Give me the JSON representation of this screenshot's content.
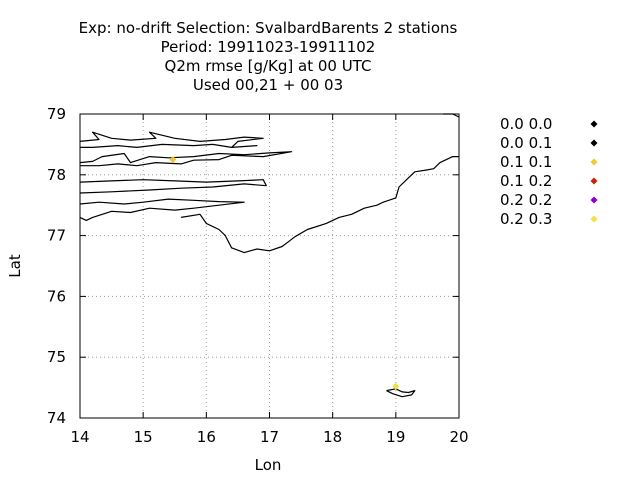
{
  "chart_data": {
    "type": "scatter",
    "title_lines": [
      "Exp: no-drift   Selection: SvalbardBarents       2 stations",
      "Period: 19911023-19911102",
      "Q2m rmse [g/Kg] at  00 UTC",
      "Used  00,21  + 00 03"
    ],
    "xlabel": "Lon",
    "ylabel": "Lat",
    "xlim": [
      14,
      20
    ],
    "ylim": [
      74,
      79
    ],
    "xticks": [
      "14",
      "15",
      "16",
      "17",
      "18",
      "19",
      "20"
    ],
    "yticks": [
      "74",
      "75",
      "76",
      "77",
      "78",
      "79"
    ],
    "grid": true,
    "legend_position": "right",
    "legend": [
      {
        "label": "0.0 0.0",
        "color": "#000000"
      },
      {
        "label": "0.0 0.1",
        "color": "#000000"
      },
      {
        "label": "0.1 0.1",
        "color": "#f0c830"
      },
      {
        "label": "0.1 0.2",
        "color": "#cc2200"
      },
      {
        "label": "0.2 0.2",
        "color": "#8a00cc"
      },
      {
        "label": "0.2 0.3",
        "color": "#f0e040"
      }
    ],
    "points": [
      {
        "lon": 15.47,
        "lat": 78.25,
        "color": "#f0c830"
      },
      {
        "lon": 19.0,
        "lat": 74.52,
        "color": "#f0e040"
      }
    ],
    "coastlines": [
      [
        [
          14.0,
          78.2
        ],
        [
          14.2,
          78.22
        ],
        [
          14.35,
          78.3
        ],
        [
          14.7,
          78.35
        ],
        [
          14.8,
          78.2
        ],
        [
          15.1,
          78.3
        ],
        [
          15.4,
          78.28
        ],
        [
          15.8,
          78.3
        ],
        [
          16.2,
          78.35
        ],
        [
          16.6,
          78.33
        ],
        [
          17.0,
          78.36
        ],
        [
          17.35,
          78.38
        ],
        [
          16.9,
          78.3
        ],
        [
          16.4,
          78.32
        ],
        [
          16.2,
          78.25
        ],
        [
          15.8,
          78.24
        ],
        [
          15.6,
          78.18
        ],
        [
          15.2,
          78.2
        ],
        [
          14.9,
          78.15
        ],
        [
          14.6,
          78.18
        ],
        [
          14.3,
          78.15
        ],
        [
          14.0,
          78.15
        ]
      ],
      [
        [
          14.0,
          78.55
        ],
        [
          14.3,
          78.58
        ],
        [
          14.2,
          78.7
        ],
        [
          14.5,
          78.6
        ],
        [
          14.8,
          78.57
        ],
        [
          15.2,
          78.6
        ],
        [
          15.1,
          78.7
        ],
        [
          15.5,
          78.6
        ],
        [
          15.9,
          78.55
        ],
        [
          16.3,
          78.58
        ],
        [
          16.6,
          78.62
        ],
        [
          16.9,
          78.6
        ],
        [
          16.5,
          78.55
        ],
        [
          16.4,
          78.45
        ],
        [
          16.8,
          78.48
        ],
        [
          16.4,
          78.45
        ],
        [
          16.1,
          78.5
        ],
        [
          15.8,
          78.48
        ],
        [
          15.3,
          78.5
        ],
        [
          14.9,
          78.45
        ],
        [
          14.6,
          78.48
        ],
        [
          14.2,
          78.45
        ],
        [
          14.0,
          78.45
        ]
      ],
      [
        [
          14.0,
          77.88
        ],
        [
          14.5,
          77.9
        ],
        [
          15.0,
          77.92
        ],
        [
          15.5,
          77.9
        ],
        [
          16.0,
          77.88
        ],
        [
          16.5,
          77.9
        ],
        [
          16.9,
          77.92
        ],
        [
          16.95,
          77.82
        ],
        [
          16.6,
          77.85
        ],
        [
          16.1,
          77.8
        ],
        [
          15.6,
          77.78
        ],
        [
          15.1,
          77.75
        ],
        [
          14.5,
          77.72
        ],
        [
          14.0,
          77.7
        ]
      ],
      [
        [
          14.0,
          77.52
        ],
        [
          14.3,
          77.55
        ],
        [
          14.7,
          77.52
        ],
        [
          15.0,
          77.55
        ],
        [
          15.4,
          77.6
        ],
        [
          15.8,
          77.58
        ],
        [
          16.2,
          77.56
        ],
        [
          16.6,
          77.55
        ],
        [
          16.2,
          77.5
        ],
        [
          15.8,
          77.45
        ],
        [
          15.5,
          77.42
        ],
        [
          15.1,
          77.45
        ],
        [
          14.8,
          77.38
        ],
        [
          14.5,
          77.4
        ],
        [
          14.2,
          77.3
        ],
        [
          14.1,
          77.25
        ],
        [
          14.0,
          77.3
        ]
      ],
      [
        [
          15.6,
          77.3
        ],
        [
          15.9,
          77.35
        ],
        [
          16.0,
          77.2
        ],
        [
          16.2,
          77.1
        ],
        [
          16.3,
          77.0
        ],
        [
          16.4,
          76.8
        ],
        [
          16.6,
          76.72
        ],
        [
          16.8,
          76.78
        ],
        [
          17.0,
          76.75
        ],
        [
          17.2,
          76.82
        ],
        [
          17.3,
          76.9
        ],
        [
          17.4,
          76.98
        ],
        [
          17.6,
          77.1
        ],
        [
          17.9,
          77.2
        ],
        [
          18.1,
          77.3
        ],
        [
          18.3,
          77.35
        ],
        [
          18.5,
          77.45
        ],
        [
          18.7,
          77.5
        ],
        [
          18.8,
          77.55
        ],
        [
          19.0,
          77.62
        ],
        [
          19.05,
          77.8
        ],
        [
          19.2,
          77.95
        ],
        [
          19.3,
          78.05
        ],
        [
          19.5,
          78.08
        ],
        [
          19.6,
          78.1
        ],
        [
          19.7,
          78.2
        ],
        [
          19.9,
          78.3
        ],
        [
          20.0,
          78.3
        ]
      ],
      [
        [
          20.0,
          78.95
        ],
        [
          19.9,
          79.0
        ],
        [
          19.75,
          79.0
        ]
      ],
      [
        [
          18.85,
          74.45
        ],
        [
          19.0,
          74.48
        ],
        [
          19.1,
          74.43
        ],
        [
          19.2,
          74.42
        ],
        [
          19.3,
          74.45
        ],
        [
          19.25,
          74.38
        ],
        [
          19.1,
          74.35
        ],
        [
          18.95,
          74.4
        ],
        [
          18.85,
          74.45
        ]
      ]
    ]
  }
}
